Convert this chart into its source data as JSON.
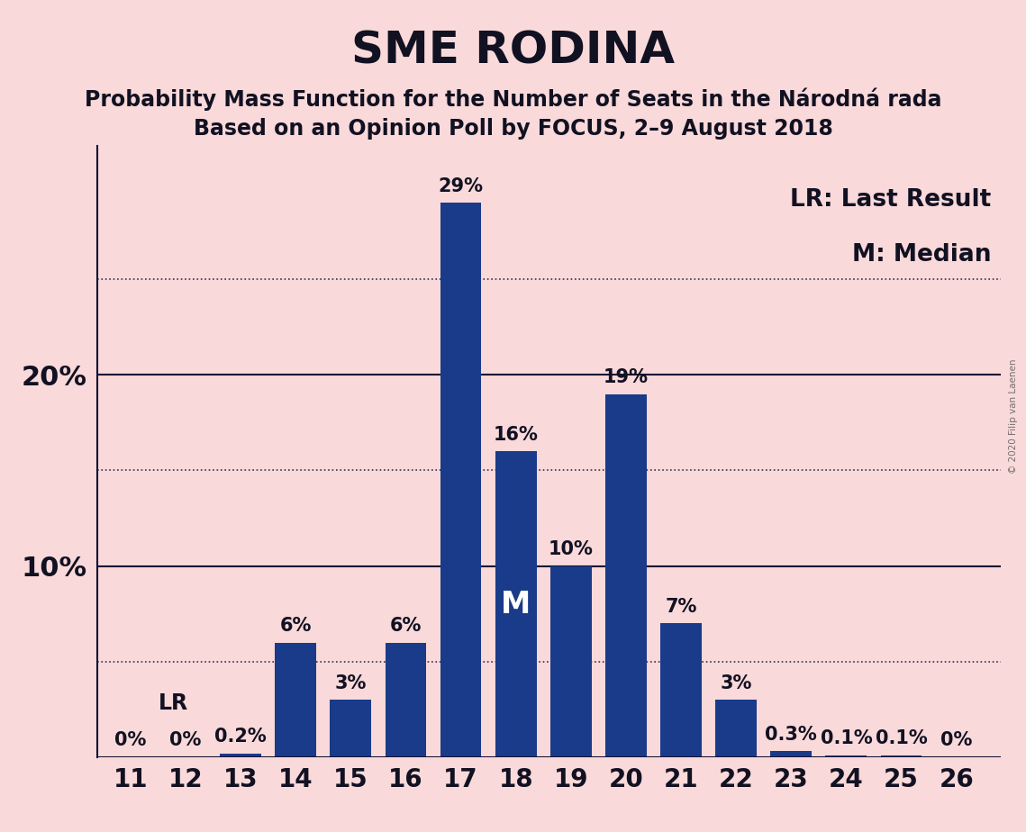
{
  "title": "SME RODINA",
  "subtitle1": "Probability Mass Function for the Number of Seats in the Národná rada",
  "subtitle2": "Based on an Opinion Poll by FOCUS, 2–9 August 2018",
  "watermark": "© 2020 Filip van Laenen",
  "categories": [
    11,
    12,
    13,
    14,
    15,
    16,
    17,
    18,
    19,
    20,
    21,
    22,
    23,
    24,
    25,
    26
  ],
  "values": [
    0.0,
    0.0,
    0.2,
    6.0,
    3.0,
    6.0,
    29.0,
    16.0,
    10.0,
    19.0,
    7.0,
    3.0,
    0.3,
    0.1,
    0.1,
    0.0
  ],
  "bar_color": "#1a3a8a",
  "background_color": "#f9d9d9",
  "label_texts": [
    "0%",
    "0%",
    "0.2%",
    "6%",
    "3%",
    "6%",
    "29%",
    "16%",
    "10%",
    "19%",
    "7%",
    "3%",
    "0.3%",
    "0.1%",
    "0.1%",
    "0%"
  ],
  "median_seat": 18,
  "last_result_seat": 11,
  "ylim": [
    0,
    32
  ],
  "dotted_lines": [
    5,
    15,
    25
  ],
  "solid_lines": [
    10,
    20
  ],
  "legend_text1": "LR: Last Result",
  "legend_text2": "M: Median",
  "title_fontsize": 36,
  "subtitle_fontsize": 17,
  "xtick_fontsize": 20,
  "ytick_fontsize": 22,
  "bar_label_fontsize": 15,
  "legend_fontsize": 19,
  "median_fontsize": 24,
  "lr_fontsize": 17
}
